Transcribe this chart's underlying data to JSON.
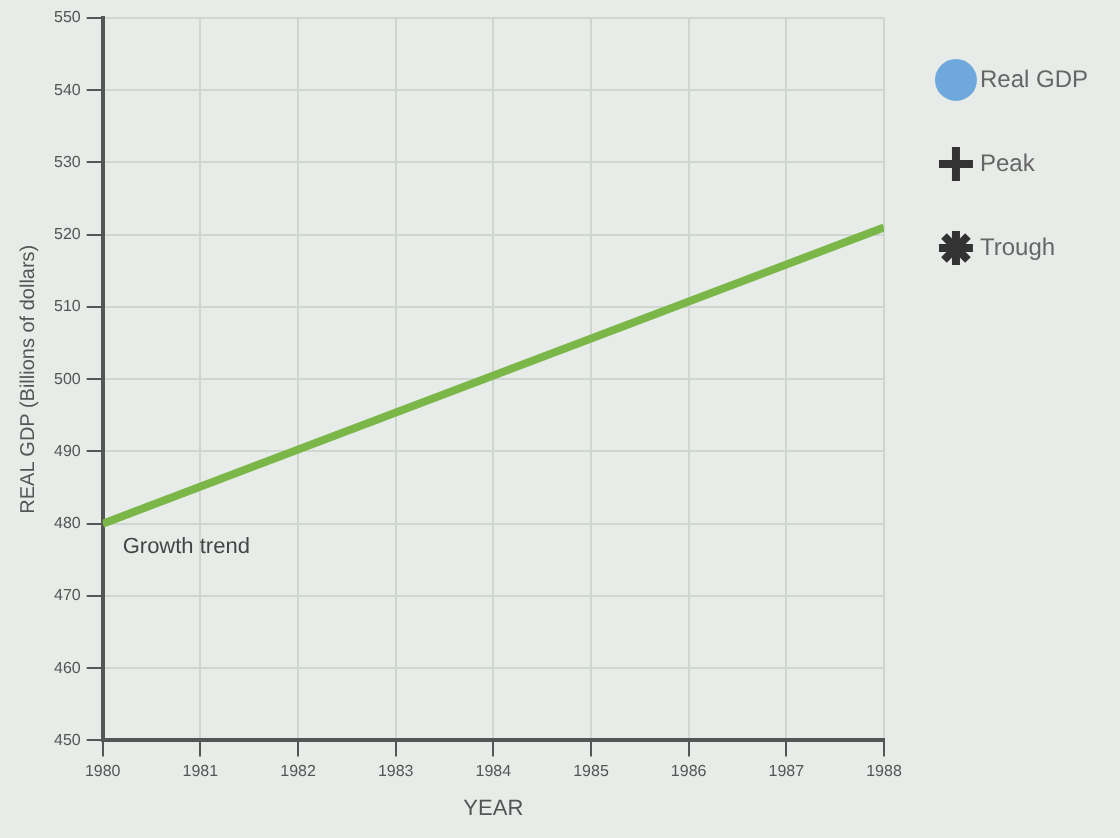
{
  "chart_data": {
    "type": "line",
    "xlabel": "YEAR",
    "ylabel": "REAL GDP (Billions of dollars)",
    "x": [
      1980,
      1988
    ],
    "series": [
      {
        "name": "Growth trend",
        "color": "#7ab648",
        "values": [
          480,
          521
        ],
        "marker": "none"
      },
      {
        "name": "Real GDP",
        "color": "#6fa8dc",
        "values": [
          null,
          null
        ],
        "marker": "circle"
      },
      {
        "name": "Peak",
        "color": "#333333",
        "values": [
          null,
          null
        ],
        "marker": "cross"
      },
      {
        "name": "Trough",
        "color": "#333333",
        "values": [
          null,
          null
        ],
        "marker": "star"
      }
    ],
    "xlim": [
      1980,
      1988
    ],
    "xticks": [
      1980,
      1981,
      1982,
      1983,
      1984,
      1985,
      1986,
      1987,
      1988
    ],
    "ylim": [
      450,
      550
    ],
    "yticks": [
      450,
      460,
      470,
      480,
      490,
      500,
      510,
      520,
      530,
      540,
      550
    ],
    "grid": true,
    "legend": "right"
  }
}
